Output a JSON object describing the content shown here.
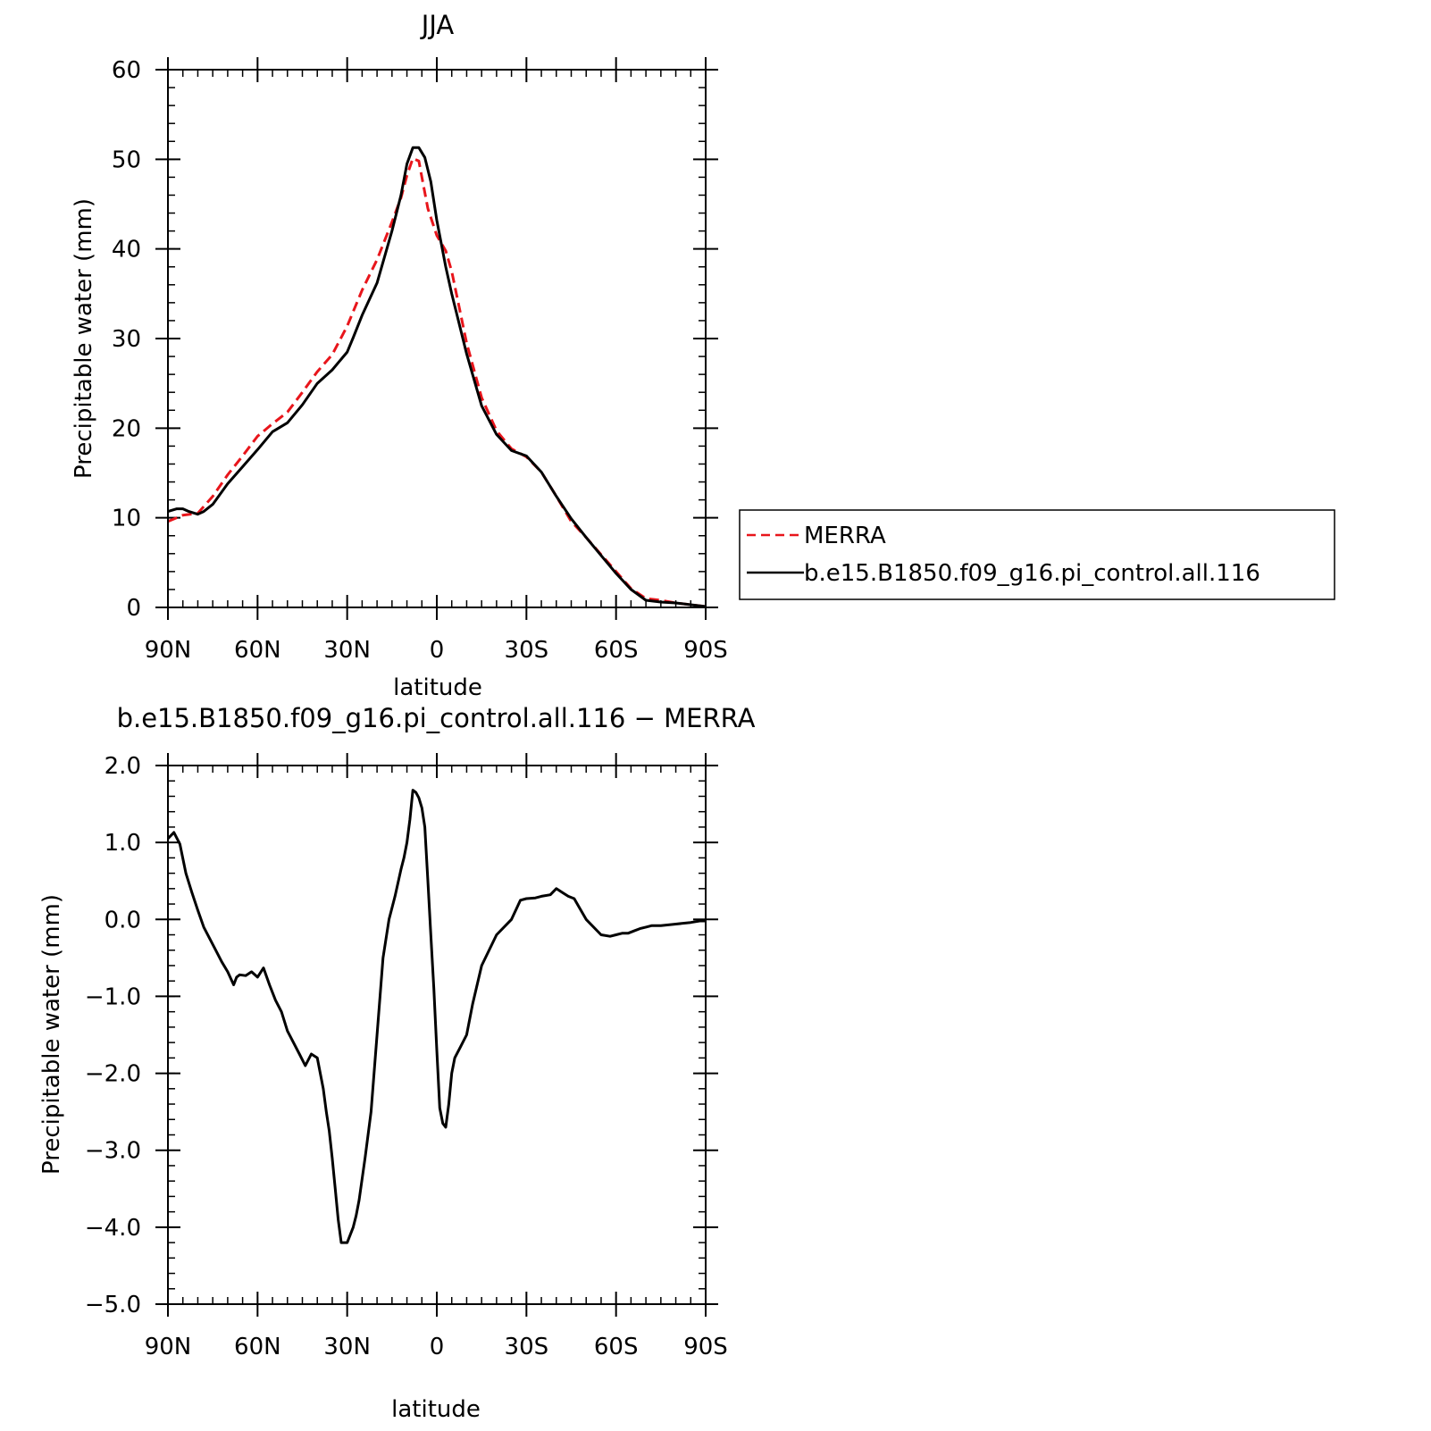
{
  "colors": {
    "merra": "#e8151b",
    "model": "#000000",
    "axis": "#000000"
  },
  "chart_data": [
    {
      "type": "line",
      "title": "JJA",
      "xlabel": "latitude",
      "ylabel": "Precipitable water (mm)",
      "xlim": [
        90,
        -90
      ],
      "ylim": [
        0,
        60
      ],
      "xticks": [
        {
          "v": 90,
          "label": "90N"
        },
        {
          "v": 60,
          "label": "60N"
        },
        {
          "v": 30,
          "label": "30N"
        },
        {
          "v": 0,
          "label": "0"
        },
        {
          "v": -30,
          "label": "30S"
        },
        {
          "v": -60,
          "label": "60S"
        },
        {
          "v": -90,
          "label": "90S"
        }
      ],
      "yticks": [
        {
          "v": 0,
          "label": "0"
        },
        {
          "v": 10,
          "label": "10"
        },
        {
          "v": 20,
          "label": "20"
        },
        {
          "v": 30,
          "label": "30"
        },
        {
          "v": 40,
          "label": "40"
        },
        {
          "v": 50,
          "label": "50"
        },
        {
          "v": 60,
          "label": "60"
        }
      ],
      "legend": {
        "placement": "right",
        "entries": [
          {
            "label": "MERRA",
            "style": "dashed",
            "color": "#e8151b"
          },
          {
            "label": "b.e15.B1850.f09_g16.pi_control.all.116",
            "style": "solid",
            "color": "#000000"
          }
        ]
      },
      "series": [
        {
          "name": "MERRA",
          "style": "dashed",
          "color": "#e8151b",
          "x": [
            90,
            85,
            80,
            75,
            70,
            65,
            60,
            55,
            50,
            45,
            40,
            35,
            30,
            25,
            20,
            15,
            12,
            10,
            8,
            6,
            5,
            3,
            0,
            -3,
            -5,
            -10,
            -15,
            -20,
            -25,
            -30,
            -35,
            -40,
            -45,
            -50,
            -55,
            -60,
            -65,
            -70,
            -75,
            -80,
            -85,
            -90
          ],
          "y": [
            9.6,
            10.3,
            10.5,
            12.4,
            14.8,
            16.9,
            19.1,
            20.5,
            21.8,
            24.0,
            26.3,
            28.2,
            31.4,
            35.4,
            38.8,
            43.0,
            45.7,
            48.2,
            50.1,
            49.8,
            48.0,
            44.5,
            41.5,
            39.8,
            37.5,
            29.5,
            23.4,
            19.7,
            17.7,
            16.8,
            15.1,
            12.4,
            9.6,
            7.8,
            5.9,
            4.0,
            2.1,
            1.0,
            0.8,
            0.5,
            0.3,
            0.1
          ]
        },
        {
          "name": "b.e15.B1850.f09_g16.pi_control.all.116",
          "style": "solid",
          "color": "#000000",
          "x": [
            90,
            87,
            85,
            83,
            80,
            78,
            75,
            70,
            65,
            60,
            55,
            50,
            45,
            40,
            35,
            30,
            28,
            25,
            20,
            15,
            12,
            10,
            8,
            6,
            4,
            2,
            0,
            -3,
            -5,
            -10,
            -15,
            -20,
            -25,
            -30,
            -35,
            -40,
            -45,
            -50,
            -55,
            -60,
            -65,
            -70,
            -75,
            -80,
            -85,
            -90
          ],
          "y": [
            10.7,
            11.0,
            11.0,
            10.7,
            10.4,
            10.7,
            11.5,
            13.8,
            15.7,
            17.6,
            19.6,
            20.6,
            22.6,
            25.0,
            26.5,
            28.5,
            30.1,
            32.6,
            36.2,
            42.0,
            46.0,
            49.5,
            51.3,
            51.3,
            50.2,
            47.5,
            43.2,
            38.0,
            35.0,
            28.3,
            22.5,
            19.3,
            17.5,
            16.9,
            15.1,
            12.4,
            9.9,
            7.8,
            5.8,
            3.8,
            2.0,
            0.8,
            0.6,
            0.5,
            0.3,
            0.1
          ]
        }
      ]
    },
    {
      "type": "line",
      "title": "b.e15.B1850.f09_g16.pi_control.all.116 − MERRA",
      "xlabel": "latitude",
      "ylabel": "Precipitable water (mm)",
      "xlim": [
        90,
        -90
      ],
      "ylim": [
        -5.0,
        2.0
      ],
      "xticks": [
        {
          "v": 90,
          "label": "90N"
        },
        {
          "v": 60,
          "label": "60N"
        },
        {
          "v": 30,
          "label": "30N"
        },
        {
          "v": 0,
          "label": "0"
        },
        {
          "v": -30,
          "label": "30S"
        },
        {
          "v": -60,
          "label": "60S"
        },
        {
          "v": -90,
          "label": "90S"
        }
      ],
      "yticks": [
        {
          "v": -5.0,
          "label": "−5.0"
        },
        {
          "v": -4.0,
          "label": "−4.0"
        },
        {
          "v": -3.0,
          "label": "−3.0"
        },
        {
          "v": -2.0,
          "label": "−2.0"
        },
        {
          "v": -1.0,
          "label": "−1.0"
        },
        {
          "v": 0.0,
          "label": "0.0"
        },
        {
          "v": 1.0,
          "label": "1.0"
        },
        {
          "v": 2.0,
          "label": "2.0"
        }
      ],
      "series": [
        {
          "style": "solid",
          "color": "#000000",
          "x": [
            90,
            88,
            86,
            84,
            82,
            80,
            78,
            76,
            74,
            72,
            70,
            68,
            67,
            66,
            64,
            62,
            60,
            58,
            56,
            54,
            52,
            50,
            48,
            46,
            44,
            42,
            40,
            38,
            37,
            36,
            35,
            34,
            33,
            32,
            30,
            28,
            27,
            26,
            24,
            22,
            20,
            18,
            16,
            14,
            12,
            11,
            10,
            9,
            8,
            7,
            6,
            5,
            4,
            3,
            2,
            1,
            0,
            -1,
            -2,
            -3,
            -4,
            -5,
            -6,
            -8,
            -10,
            -12,
            -15,
            -20,
            -25,
            -28,
            -30,
            -33,
            -35,
            -38,
            -40,
            -42,
            -44,
            -46,
            -50,
            -55,
            -58,
            -60,
            -62,
            -64,
            -66,
            -68,
            -70,
            -72,
            -75,
            -80,
            -85,
            -88,
            -90
          ],
          "y": [
            1.05,
            1.13,
            0.98,
            0.6,
            0.35,
            0.12,
            -0.1,
            -0.25,
            -0.4,
            -0.55,
            -0.68,
            -0.85,
            -0.75,
            -0.72,
            -0.73,
            -0.68,
            -0.75,
            -0.63,
            -0.85,
            -1.05,
            -1.2,
            -1.45,
            -1.6,
            -1.75,
            -1.9,
            -1.75,
            -1.8,
            -2.2,
            -2.5,
            -2.75,
            -3.1,
            -3.5,
            -3.9,
            -4.2,
            -4.2,
            -4.0,
            -3.85,
            -3.65,
            -3.1,
            -2.5,
            -1.5,
            -0.5,
            0.0,
            0.3,
            0.65,
            0.8,
            1.0,
            1.3,
            1.68,
            1.65,
            1.58,
            1.45,
            1.2,
            0.5,
            -0.2,
            -0.9,
            -1.7,
            -2.45,
            -2.65,
            -2.7,
            -2.4,
            -2.0,
            -1.8,
            -1.65,
            -1.5,
            -1.1,
            -0.6,
            -0.2,
            0.0,
            0.25,
            0.27,
            0.28,
            0.3,
            0.32,
            0.4,
            0.35,
            0.3,
            0.27,
            0.0,
            -0.2,
            -0.22,
            -0.2,
            -0.18,
            -0.18,
            -0.15,
            -0.12,
            -0.1,
            -0.08,
            -0.08,
            -0.06,
            -0.04,
            -0.02,
            -0.02
          ]
        }
      ]
    }
  ]
}
